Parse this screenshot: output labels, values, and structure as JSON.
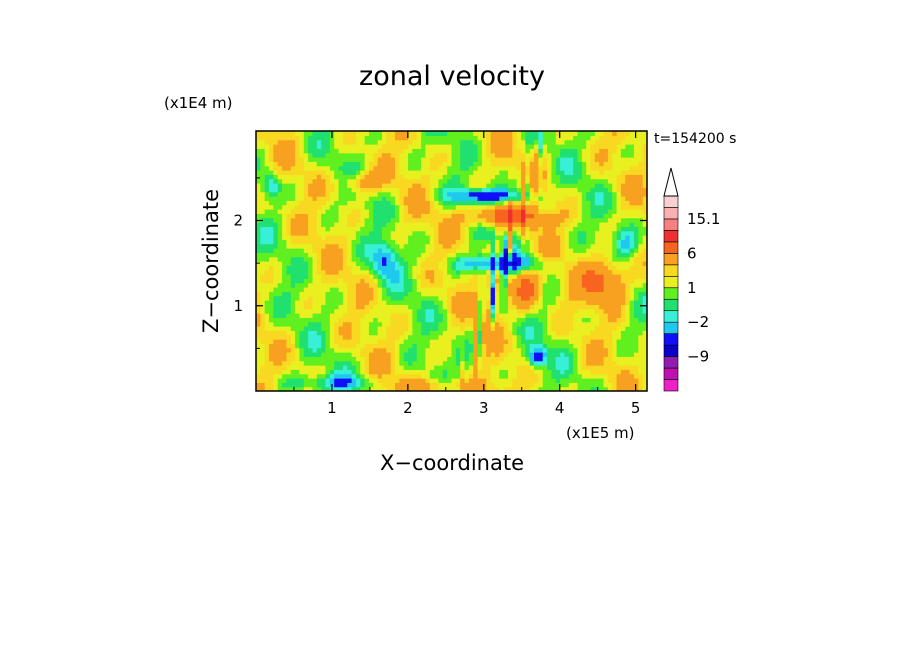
{
  "chart_data": {
    "type": "heatmap",
    "title": "zonal velocity",
    "xlabel": "X−coordinate",
    "ylabel": "Z−coordinate",
    "x_unit": "(x1E5 m)",
    "y_unit": "(x1E4 m)",
    "time_label": "t=154200 s",
    "xlim": [
      0,
      5.15
    ],
    "ylim": [
      0,
      3.05
    ],
    "x_ticks": [
      {
        "value": 1,
        "label": "1"
      },
      {
        "value": 2,
        "label": "2"
      },
      {
        "value": 3,
        "label": "3"
      },
      {
        "value": 4,
        "label": "4"
      },
      {
        "value": 5,
        "label": "5"
      }
    ],
    "y_ticks": [
      {
        "value": 1,
        "label": "1"
      },
      {
        "value": 2,
        "label": "2"
      }
    ],
    "colorbar": {
      "levels": [
        -15,
        -12,
        -9,
        -6,
        -3,
        -2,
        -1,
        0,
        1,
        2,
        3,
        6,
        9,
        12,
        15.1
      ],
      "colors": [
        "#f020c8",
        "#c010b0",
        "#901cb0",
        "#0a00c8",
        "#1010f8",
        "#20c8f0",
        "#38f0d8",
        "#20e070",
        "#60f020",
        "#e8f020",
        "#f8d820",
        "#f8a020",
        "#f86420",
        "#f03030",
        "#f88080",
        "#f8b0b0",
        "#f8d0d0"
      ],
      "labels": [
        {
          "value": 15.1,
          "label": "15.1"
        },
        {
          "value": 6,
          "label": "6"
        },
        {
          "value": 1,
          "label": "1"
        },
        {
          "value": -2,
          "label": "−2"
        },
        {
          "value": -9,
          "label": "−9"
        }
      ],
      "extend_top": true
    }
  }
}
